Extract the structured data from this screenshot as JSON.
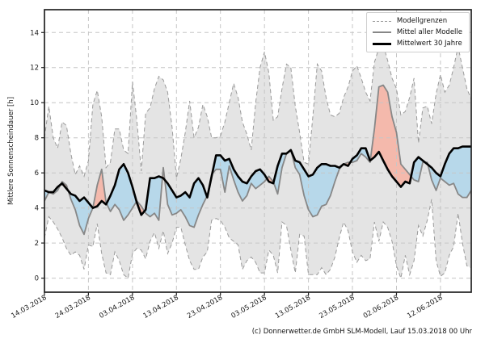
{
  "axes": {
    "y_label": "Mittlere Sonnenscheindauer [h]",
    "y_ticks": [
      0,
      2,
      4,
      6,
      8,
      10,
      12,
      14
    ],
    "x_ticks": [
      {
        "day": 0,
        "label": "14.03.2018"
      },
      {
        "day": 10,
        "label": "24.03.2018"
      },
      {
        "day": 20,
        "label": "03.04.2018"
      },
      {
        "day": 30,
        "label": "13.04.2018"
      },
      {
        "day": 40,
        "label": "23.04.2018"
      },
      {
        "day": 50,
        "label": "03.05.2018"
      },
      {
        "day": 60,
        "label": "13.05.2018"
      },
      {
        "day": 70,
        "label": "23.05.2018"
      },
      {
        "day": 80,
        "label": "02.06.2018"
      },
      {
        "day": 90,
        "label": "12.06.2018"
      }
    ]
  },
  "legend": {
    "items": [
      {
        "label": "Modellgrenzen",
        "style": "dashed-gray"
      },
      {
        "label": "Mittel aller Modelle",
        "style": "solid-gray"
      },
      {
        "label": "Mittelwert 30 Jahre",
        "style": "solid-black-thick"
      }
    ]
  },
  "caption": "(c) Donnerwetter.de GmbH SLM-Modell, Lauf 15.03.2018 00 Uhr",
  "colors": {
    "band_fill": "#e4e4e4",
    "bound_line": "#9a9a9a",
    "model_line": "#878787",
    "climate_line": "#000000",
    "fill_model_above_climate": "#f4b9ac",
    "fill_model_below_climate": "#b7d8ea",
    "grid": "#c6c6c6",
    "spine": "#222222",
    "text": "#1a1a1a"
  },
  "chart_data": {
    "type": "area",
    "title": "",
    "xlabel": "",
    "ylabel": "Mittlere Sonnenscheindauer [h]",
    "x_start_date": "14.03.2018",
    "x_step_days": 1,
    "n_points": 98,
    "ylim": [
      -0.8,
      15.3
    ],
    "y_tick_range": [
      0,
      14
    ],
    "grid": true,
    "legend_position": "top-right",
    "series": [
      {
        "name": "Modellgrenzen (obere Grenze)",
        "values": [
          8.0,
          9.8,
          8.0,
          7.4,
          8.9,
          8.7,
          7.1,
          5.9,
          6.4,
          5.8,
          6.7,
          9.9,
          10.7,
          9.2,
          6.3,
          6.6,
          8.5,
          8.5,
          7.3,
          7.1,
          11.2,
          9.0,
          6.1,
          9.4,
          9.7,
          10.8,
          11.5,
          11.3,
          10.6,
          8.6,
          5.7,
          6.8,
          8.3,
          10.1,
          8.0,
          8.6,
          9.9,
          9.2,
          8.0,
          8.0,
          8.1,
          8.9,
          10.0,
          11.1,
          10.3,
          8.9,
          8.2,
          7.3,
          10.0,
          12.0,
          12.9,
          11.7,
          9.0,
          9.2,
          10.8,
          12.2,
          12.0,
          9.8,
          8.3,
          6.6,
          6.5,
          9.2,
          12.2,
          11.8,
          10.3,
          9.3,
          9.2,
          9.4,
          10.3,
          10.9,
          11.8,
          12.1,
          11.4,
          10.6,
          10.1,
          12.3,
          13.1,
          13.3,
          12.4,
          11.4,
          10.8,
          9.3,
          9.5,
          10.3,
          11.4,
          7.7,
          9.7,
          9.8,
          8.8,
          10.5,
          11.6,
          10.6,
          11.0,
          12.0,
          13.2,
          12.0,
          10.8,
          10.2
        ]
      },
      {
        "name": "Modellgrenzen (untere Grenze)",
        "values": [
          2.3,
          3.5,
          3.2,
          2.8,
          2.3,
          1.7,
          1.3,
          1.5,
          1.3,
          0.5,
          1.9,
          1.8,
          3.1,
          1.4,
          0.3,
          0.2,
          1.5,
          1.0,
          0.2,
          0.0,
          1.4,
          1.7,
          1.6,
          1.1,
          2.1,
          2.6,
          1.7,
          2.7,
          1.4,
          2.0,
          2.9,
          2.9,
          1.9,
          1.0,
          0.5,
          0.5,
          1.2,
          1.5,
          3.3,
          3.4,
          3.3,
          2.9,
          2.3,
          2.1,
          1.9,
          0.5,
          1.0,
          1.2,
          0.9,
          0.3,
          0.3,
          1.6,
          1.3,
          0.3,
          3.2,
          3.0,
          1.6,
          0.3,
          2.5,
          2.4,
          0.2,
          0.2,
          0.2,
          0.6,
          0.2,
          0.5,
          1.2,
          2.3,
          3.2,
          2.7,
          1.5,
          0.9,
          1.3,
          1.0,
          1.1,
          3.2,
          2.1,
          3.2,
          2.9,
          2.1,
          0.7,
          0.0,
          1.3,
          0.2,
          1.0,
          3.0,
          2.4,
          3.3,
          4.5,
          1.0,
          0.1,
          0.3,
          1.3,
          1.8,
          3.7,
          2.0,
          0.7,
          0.6
        ]
      },
      {
        "name": "Mittel aller Modelle",
        "values": [
          4.4,
          4.9,
          4.8,
          5.0,
          5.5,
          5.3,
          4.5,
          3.9,
          3.0,
          2.5,
          3.4,
          4.0,
          5.3,
          6.2,
          4.3,
          3.8,
          4.2,
          3.9,
          3.3,
          3.6,
          4.0,
          4.4,
          4.1,
          3.7,
          3.5,
          3.7,
          3.3,
          6.3,
          4.2,
          3.6,
          3.7,
          3.9,
          3.5,
          3.0,
          2.9,
          3.6,
          4.2,
          4.7,
          5.9,
          6.2,
          6.2,
          4.9,
          6.4,
          5.6,
          4.9,
          4.4,
          4.7,
          5.4,
          5.1,
          5.3,
          5.5,
          5.8,
          5.5,
          4.8,
          6.3,
          7.1,
          7.3,
          6.3,
          5.9,
          4.7,
          3.9,
          3.5,
          3.6,
          4.1,
          4.2,
          4.7,
          5.5,
          6.2,
          6.5,
          6.6,
          6.6,
          6.7,
          7.1,
          6.9,
          6.6,
          8.5,
          10.9,
          11.0,
          10.6,
          9.2,
          8.3,
          6.5,
          6.2,
          5.9,
          5.6,
          5.5,
          6.6,
          6.6,
          5.6,
          5.0,
          5.7,
          5.5,
          5.3,
          5.4,
          4.8,
          4.6,
          4.6,
          5.0
        ]
      },
      {
        "name": "Mittelwert 30 Jahre",
        "values": [
          5.0,
          4.9,
          4.9,
          5.2,
          5.4,
          5.1,
          4.8,
          4.7,
          4.4,
          4.6,
          4.3,
          4.0,
          4.1,
          4.4,
          4.2,
          4.7,
          5.3,
          6.2,
          6.5,
          6.0,
          5.2,
          4.3,
          3.6,
          3.9,
          5.7,
          5.7,
          5.8,
          5.7,
          5.4,
          5.0,
          4.6,
          4.7,
          4.9,
          4.6,
          5.4,
          5.7,
          5.3,
          4.6,
          5.8,
          7.0,
          7.0,
          6.7,
          6.8,
          6.2,
          5.8,
          5.5,
          5.4,
          5.8,
          6.1,
          6.2,
          5.9,
          5.5,
          5.4,
          6.4,
          7.1,
          7.1,
          7.3,
          6.7,
          6.6,
          6.2,
          5.8,
          5.9,
          6.3,
          6.5,
          6.5,
          6.4,
          6.4,
          6.3,
          6.5,
          6.4,
          6.8,
          7.0,
          7.4,
          7.4,
          6.7,
          6.9,
          7.2,
          6.7,
          6.2,
          5.8,
          5.5,
          5.2,
          5.5,
          5.4,
          6.6,
          6.9,
          6.7,
          6.5,
          6.3,
          6.0,
          5.8,
          6.5,
          7.1,
          7.4,
          7.4,
          7.5,
          7.5,
          7.5
        ]
      }
    ],
    "fills": [
      {
        "name": "Modellband",
        "between": [
          "Modellgrenzen (obere Grenze)",
          "Modellgrenzen (untere Grenze)"
        ],
        "color_key": "band_fill"
      },
      {
        "name": "Modellmittel ueber Klimamittel",
        "between": [
          "Mittel aller Modelle",
          "Mittelwert 30 Jahre"
        ],
        "where": "above",
        "color_key": "fill_model_above_climate"
      },
      {
        "name": "Modellmittel unter Klimamittel",
        "between": [
          "Mittel aller Modelle",
          "Mittelwert 30 Jahre"
        ],
        "where": "below",
        "color_key": "fill_model_below_climate"
      }
    ]
  }
}
